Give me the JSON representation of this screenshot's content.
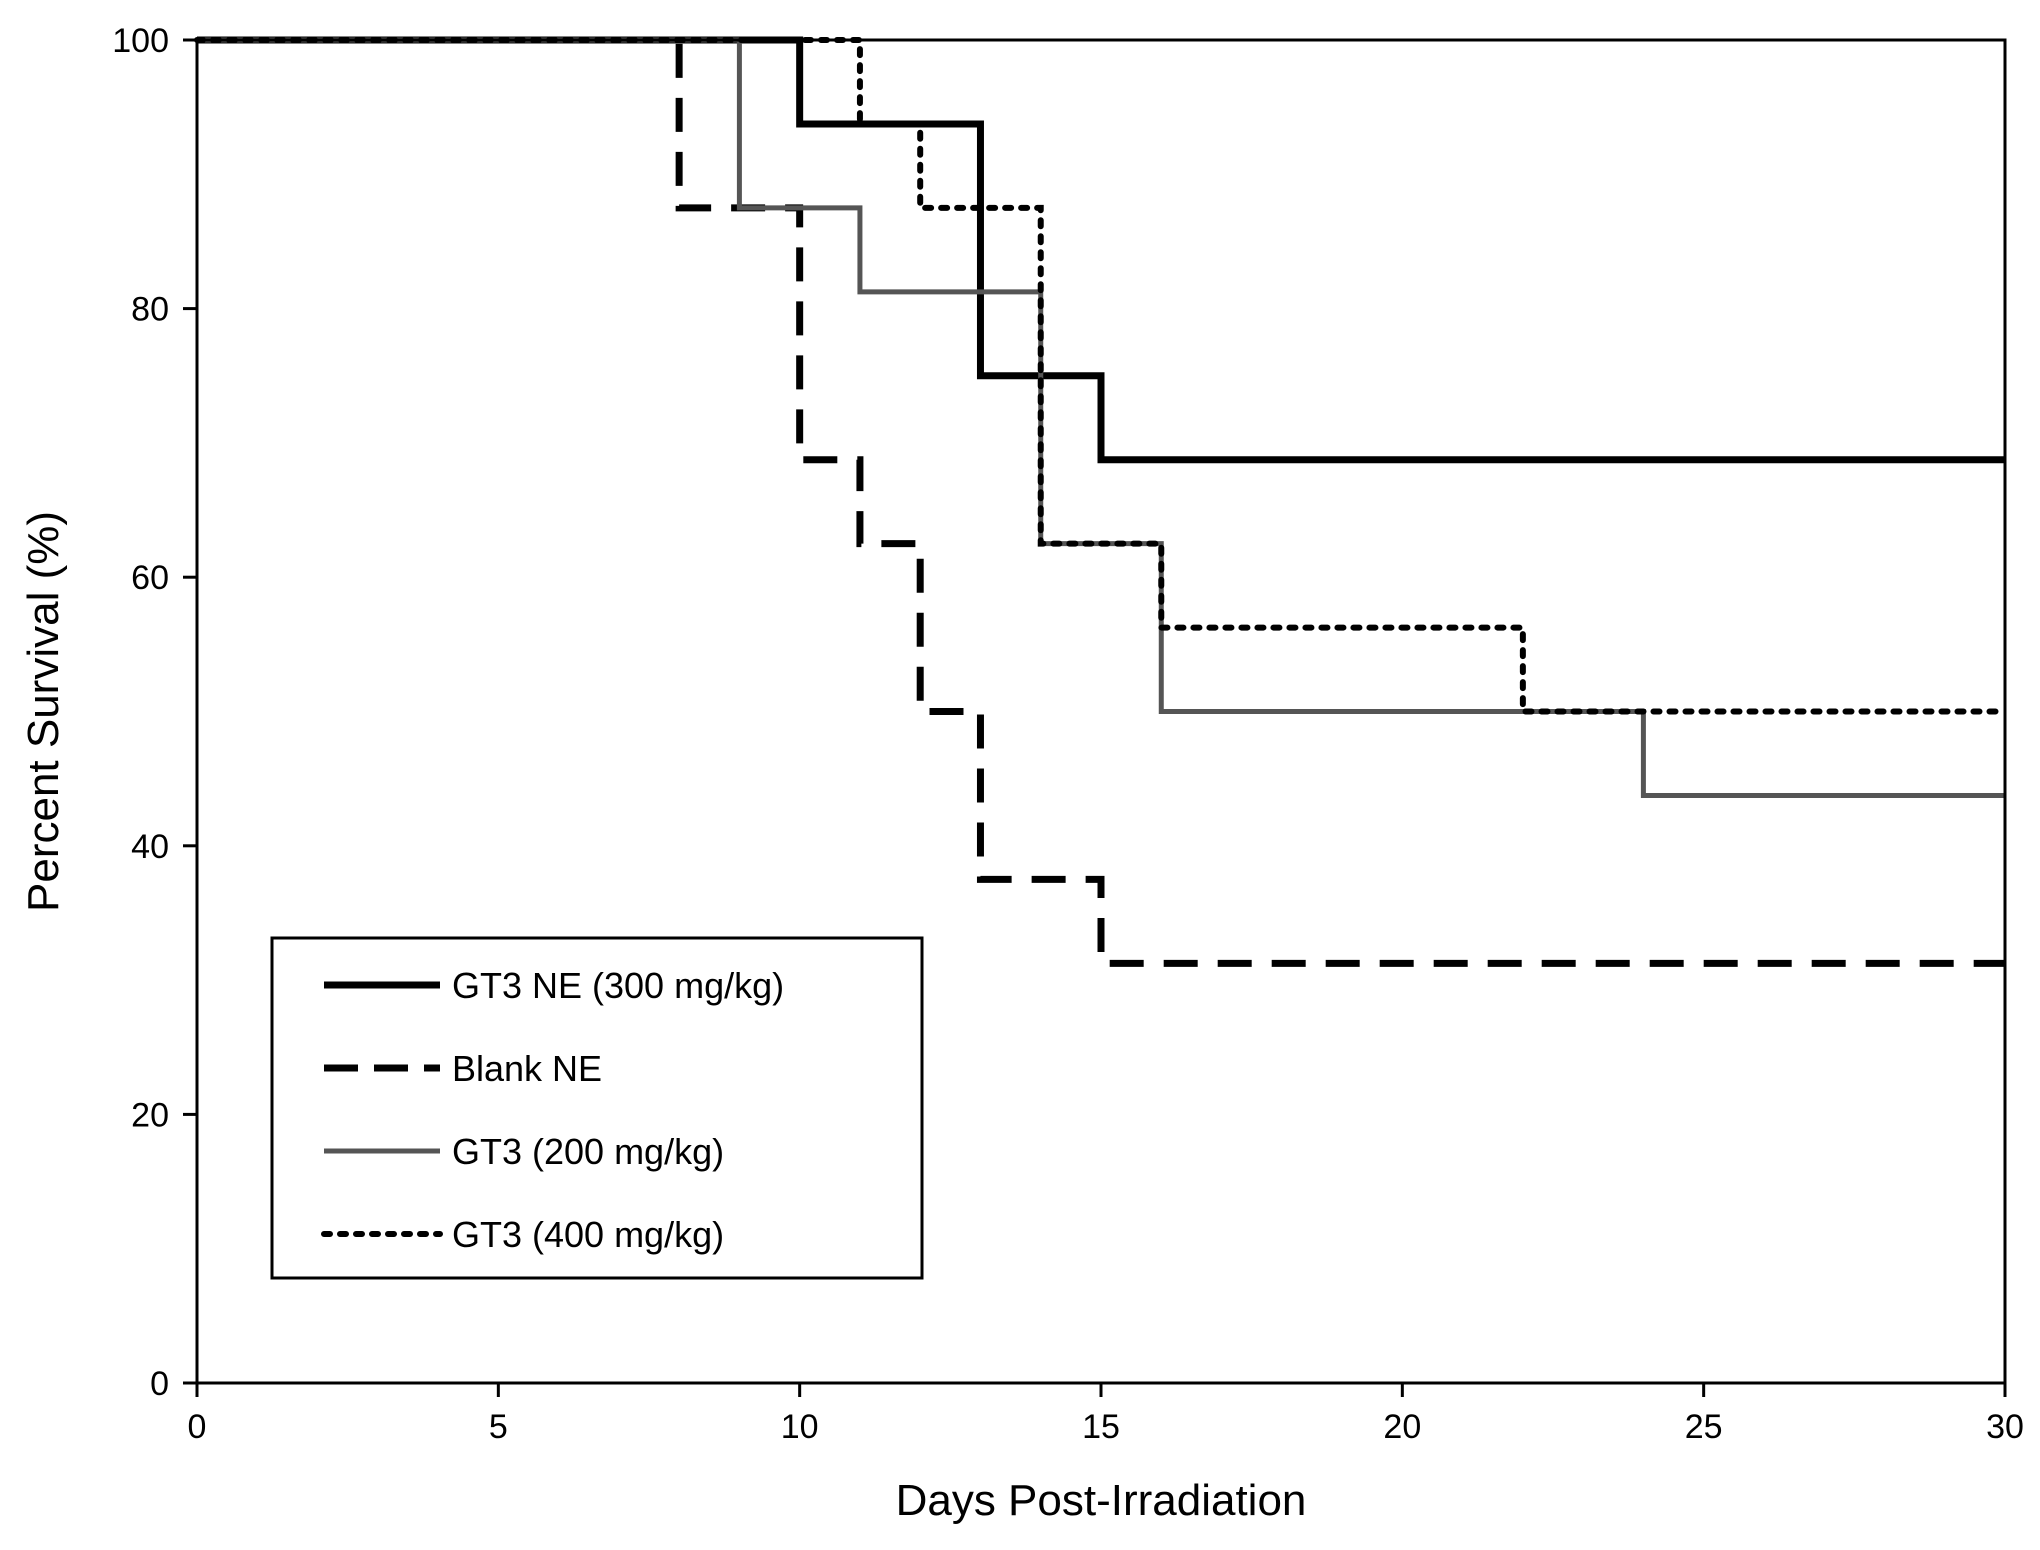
{
  "chart_data": {
    "type": "line",
    "title": "",
    "xlabel": "Days Post-Irradiation",
    "ylabel": "Percent Survival (%)",
    "xlim": [
      0,
      30
    ],
    "ylim": [
      0,
      100
    ],
    "xticks": [
      0,
      5,
      10,
      15,
      20,
      25,
      30
    ],
    "yticks": [
      0,
      20,
      40,
      60,
      80,
      100
    ],
    "xtick_labels": [
      "0",
      "5",
      "10",
      "15",
      "20",
      "25",
      "30"
    ],
    "ytick_labels": [
      "0",
      "20",
      "40",
      "60",
      "80",
      "100"
    ],
    "grid": false,
    "legend_position": "bottom-left",
    "series": [
      {
        "name": "GT3 NE (300 mg/kg)",
        "style": "solid",
        "color": "#000000",
        "x": [
          0,
          10,
          13,
          15,
          30
        ],
        "y": [
          100,
          93.75,
          75,
          68.75,
          68.75
        ]
      },
      {
        "name": "Blank NE",
        "style": "dashed",
        "color": "#000000",
        "x": [
          0,
          8,
          10,
          11,
          12,
          13,
          15,
          30
        ],
        "y": [
          100,
          87.5,
          68.75,
          62.5,
          50,
          37.5,
          31.25,
          31.25
        ]
      },
      {
        "name": "GT3 (200 mg/kg)",
        "style": "solid",
        "color": "#555555",
        "x": [
          0,
          9,
          11,
          14,
          16,
          24,
          30
        ],
        "y": [
          100,
          87.5,
          81.25,
          62.5,
          50,
          43.75,
          43.75
        ]
      },
      {
        "name": "GT3 (400 mg/kg)",
        "style": "dotted",
        "color": "#000000",
        "x": [
          0,
          11,
          12,
          14,
          16,
          22,
          30
        ],
        "y": [
          100,
          93.75,
          87.5,
          62.5,
          56.25,
          50,
          50
        ]
      }
    ]
  }
}
